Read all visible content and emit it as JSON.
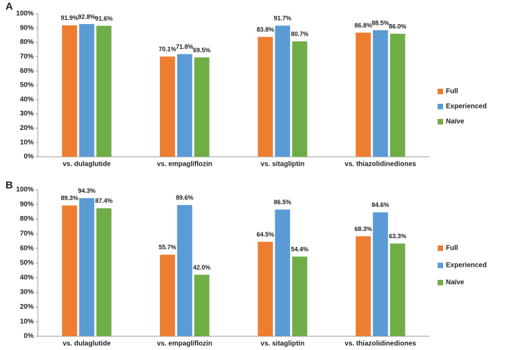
{
  "chart_data": [
    {
      "type": "bar",
      "label": "A",
      "categories": [
        "vs. dulaglutide",
        "vs. empagliflozin",
        "vs. sitagliptin",
        "vs. thiazolidinediones"
      ],
      "series": [
        {
          "name": "Full",
          "color": "#ed7d31",
          "values": [
            91.9,
            70.1,
            83.8,
            86.8
          ],
          "value_labels": [
            "91.9%",
            "70.1%",
            "83.8%",
            "86.8%"
          ]
        },
        {
          "name": "Experienced",
          "color": "#5b9bd5",
          "values": [
            92.8,
            71.8,
            91.7,
            88.5
          ],
          "value_labels": [
            "92.8%",
            "71.8%",
            "91.7%",
            "88.5%"
          ]
        },
        {
          "name": "Naïve",
          "color": "#70ad47",
          "values": [
            91.6,
            69.5,
            80.7,
            86.0
          ],
          "value_labels": [
            "91.6%",
            "69.5%",
            "80.7%",
            "86.0%"
          ]
        }
      ],
      "ylim": [
        0,
        100
      ],
      "yticks": [
        {
          "value": 0,
          "label": "0%"
        },
        {
          "value": 10,
          "label": "10%"
        },
        {
          "value": 20,
          "label": "20%"
        },
        {
          "value": 30,
          "label": "30%"
        },
        {
          "value": 40,
          "label": "40%"
        },
        {
          "value": 50,
          "label": "50%"
        },
        {
          "value": 60,
          "label": "60%"
        },
        {
          "value": 70,
          "label": "70%"
        },
        {
          "value": 80,
          "label": "80%"
        },
        {
          "value": 90,
          "label": "90%"
        },
        {
          "value": 100,
          "label": "100%"
        }
      ],
      "legend": "right"
    },
    {
      "type": "bar",
      "label": "B",
      "categories": [
        "vs. dulaglutide",
        "vs. empagliflozin",
        "vs. sitagliptin",
        "vs. thiazolidinediones"
      ],
      "series": [
        {
          "name": "Full",
          "color": "#ed7d31",
          "values": [
            89.3,
            55.7,
            64.5,
            68.3
          ],
          "value_labels": [
            "89.3%",
            "55.7%",
            "64.5%",
            "68.3%"
          ]
        },
        {
          "name": "Experienced",
          "color": "#5b9bd5",
          "values": [
            94.3,
            89.6,
            86.5,
            84.6
          ],
          "value_labels": [
            "94.3%",
            "89.6%",
            "86.5%",
            "84.6%"
          ]
        },
        {
          "name": "Naïve",
          "color": "#70ad47",
          "values": [
            87.4,
            42.0,
            54.4,
            63.3
          ],
          "value_labels": [
            "87.4%",
            "42.0%",
            "54.4%",
            "63.3%"
          ]
        }
      ],
      "ylim": [
        0,
        100
      ],
      "yticks": [
        {
          "value": 0,
          "label": "0%"
        },
        {
          "value": 10,
          "label": "10%"
        },
        {
          "value": 20,
          "label": "20%"
        },
        {
          "value": 30,
          "label": "30%"
        },
        {
          "value": 40,
          "label": "40%"
        },
        {
          "value": 50,
          "label": "50%"
        },
        {
          "value": 60,
          "label": "60%"
        },
        {
          "value": 70,
          "label": "70%"
        },
        {
          "value": 80,
          "label": "80%"
        },
        {
          "value": 90,
          "label": "90%"
        },
        {
          "value": 100,
          "label": "100%"
        }
      ],
      "legend": "right"
    }
  ]
}
